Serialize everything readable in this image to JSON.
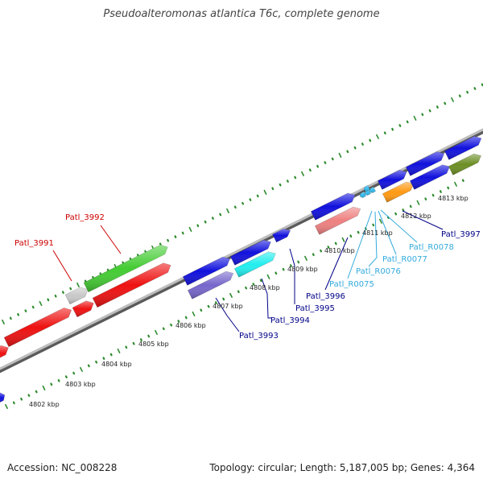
{
  "title": "Pseudoalteromonas atlantica T6c, complete genome",
  "footer": {
    "accession": "Accession: NC_008228",
    "summary": "Topology: circular; Length: 5,187,005 bp; Genes: 4,364"
  },
  "colors": {
    "backbone": "#8c8c8c",
    "ticks": "#2e8b2e",
    "red": "#ee1111",
    "green": "#44cc33",
    "blue": "#1111dd",
    "slate": "#7766cc",
    "cyan": "#22eeee",
    "salmon": "#ee8080",
    "orange": "#ff9911",
    "olive": "#6b8e23",
    "gray": "#c8c8c8",
    "label_red": "#cc0000",
    "label_navy": "#000088",
    "label_cyan": "#33aadd"
  },
  "kbp_labels": [
    "4802 kbp",
    "4803 kbp",
    "4804 kbp",
    "4805 kbp",
    "4806 kbp",
    "4807 kbp",
    "4808 kbp",
    "4809 kbp",
    "4810 kbp",
    "4811 kbp",
    "4812 kbp",
    "4813 kbp"
  ],
  "gene_labels": {
    "patl_3991": "Patl_3991",
    "patl_3992": "Patl_3992",
    "patl_3993": "Patl_3993",
    "patl_3994": "Patl_3994",
    "patl_3995": "Patl_3995",
    "patl_3996": "Patl_3996",
    "patl_3997": "Patl_3997",
    "patl_r0075": "Patl_R0075",
    "patl_r0076": "Patl_R0076",
    "patl_r0077": "Patl_R0077",
    "patl_r0078": "Patl_R0078"
  }
}
